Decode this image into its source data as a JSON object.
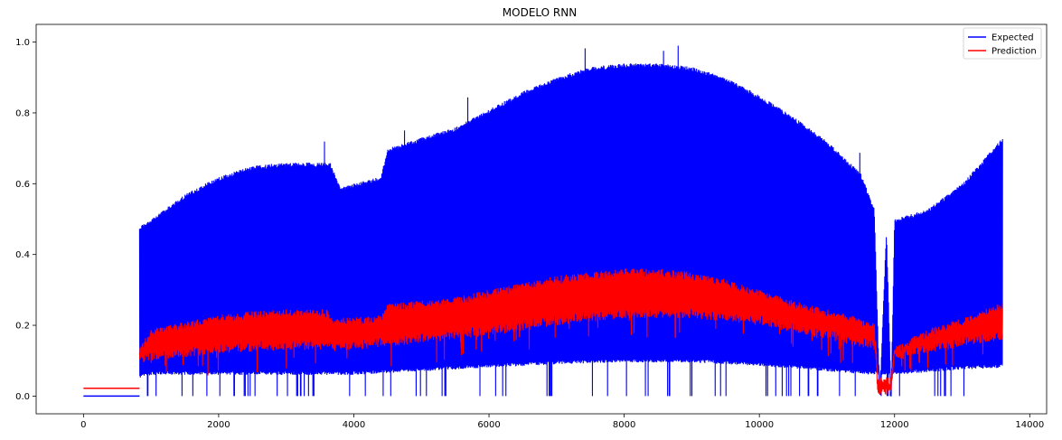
{
  "chart_data": {
    "type": "line",
    "title": "MODELO RNN",
    "xlabel": "",
    "ylabel": "",
    "xlim": [
      -700,
      14250
    ],
    "ylim": [
      -0.05,
      1.05
    ],
    "xticks": [
      0,
      2000,
      4000,
      6000,
      8000,
      10000,
      12000,
      14000
    ],
    "xtick_labels": [
      "0",
      "2000",
      "4000",
      "6000",
      "8000",
      "10000",
      "12000",
      "14000"
    ],
    "yticks": [
      0.0,
      0.2,
      0.4,
      0.6,
      0.8,
      1.0
    ],
    "ytick_labels": [
      "0.0",
      "0.2",
      "0.4",
      "0.6",
      "0.8",
      "1.0"
    ],
    "grid": false,
    "legend_position": "top-right",
    "series": [
      {
        "name": "Expected",
        "color": "#0000ff",
        "style": "oscillating-band",
        "baseline": {
          "x": [
            0,
            830
          ],
          "y": [
            0.0,
            0.0
          ]
        },
        "upper_envelope": {
          "x": [
            830,
            1000,
            1500,
            2000,
            2500,
            3000,
            3500,
            3650,
            3800,
            4400,
            4500,
            5000,
            5500,
            6000,
            6500,
            7000,
            7500,
            8000,
            8500,
            9000,
            9500,
            10000,
            10500,
            11000,
            11500,
            11700,
            11780,
            11880,
            11950,
            12000,
            12500,
            13000,
            13600
          ],
          "y": [
            0.48,
            0.5,
            0.57,
            0.62,
            0.65,
            0.66,
            0.66,
            0.66,
            0.59,
            0.62,
            0.7,
            0.73,
            0.76,
            0.81,
            0.86,
            0.9,
            0.93,
            0.94,
            0.94,
            0.93,
            0.9,
            0.85,
            0.79,
            0.72,
            0.63,
            0.53,
            0.0,
            0.47,
            0.0,
            0.5,
            0.53,
            0.6,
            0.73
          ]
        },
        "lower_envelope": {
          "x": [
            830,
            1000,
            2000,
            3000,
            4000,
            5000,
            6000,
            7000,
            8000,
            9000,
            10000,
            11000,
            11700,
            12000,
            13000,
            13600
          ],
          "y": [
            0.05,
            0.06,
            0.06,
            0.06,
            0.06,
            0.07,
            0.08,
            0.09,
            0.095,
            0.095,
            0.085,
            0.07,
            0.06,
            0.06,
            0.075,
            0.08
          ]
        },
        "dropouts_to_zero": true
      },
      {
        "name": "Prediction",
        "color": "#ff0000",
        "style": "oscillating-band",
        "baseline": {
          "x": [
            0,
            830
          ],
          "y": [
            0.022,
            0.022
          ]
        },
        "upper_envelope": {
          "x": [
            830,
            1000,
            1500,
            2000,
            2500,
            3000,
            3600,
            3700,
            4400,
            4500,
            5000,
            5500,
            6000,
            6500,
            7000,
            7500,
            8000,
            8500,
            9000,
            9500,
            10000,
            10500,
            11000,
            11500,
            11700,
            11750,
            11950,
            12000,
            12500,
            13000,
            13600
          ],
          "y": [
            0.14,
            0.19,
            0.21,
            0.23,
            0.24,
            0.245,
            0.245,
            0.22,
            0.23,
            0.26,
            0.27,
            0.28,
            0.3,
            0.32,
            0.34,
            0.35,
            0.36,
            0.36,
            0.35,
            0.33,
            0.3,
            0.27,
            0.245,
            0.22,
            0.21,
            0.025,
            0.025,
            0.14,
            0.19,
            0.22,
            0.265
          ]
        },
        "lower_envelope": {
          "x": [
            830,
            1000,
            2000,
            3000,
            4000,
            5000,
            6000,
            7000,
            8000,
            9000,
            10000,
            11000,
            11700,
            12000,
            13000,
            13600
          ],
          "y": [
            0.09,
            0.1,
            0.12,
            0.13,
            0.13,
            0.15,
            0.17,
            0.2,
            0.22,
            0.22,
            0.2,
            0.16,
            0.13,
            0.1,
            0.14,
            0.16
          ]
        }
      }
    ]
  }
}
